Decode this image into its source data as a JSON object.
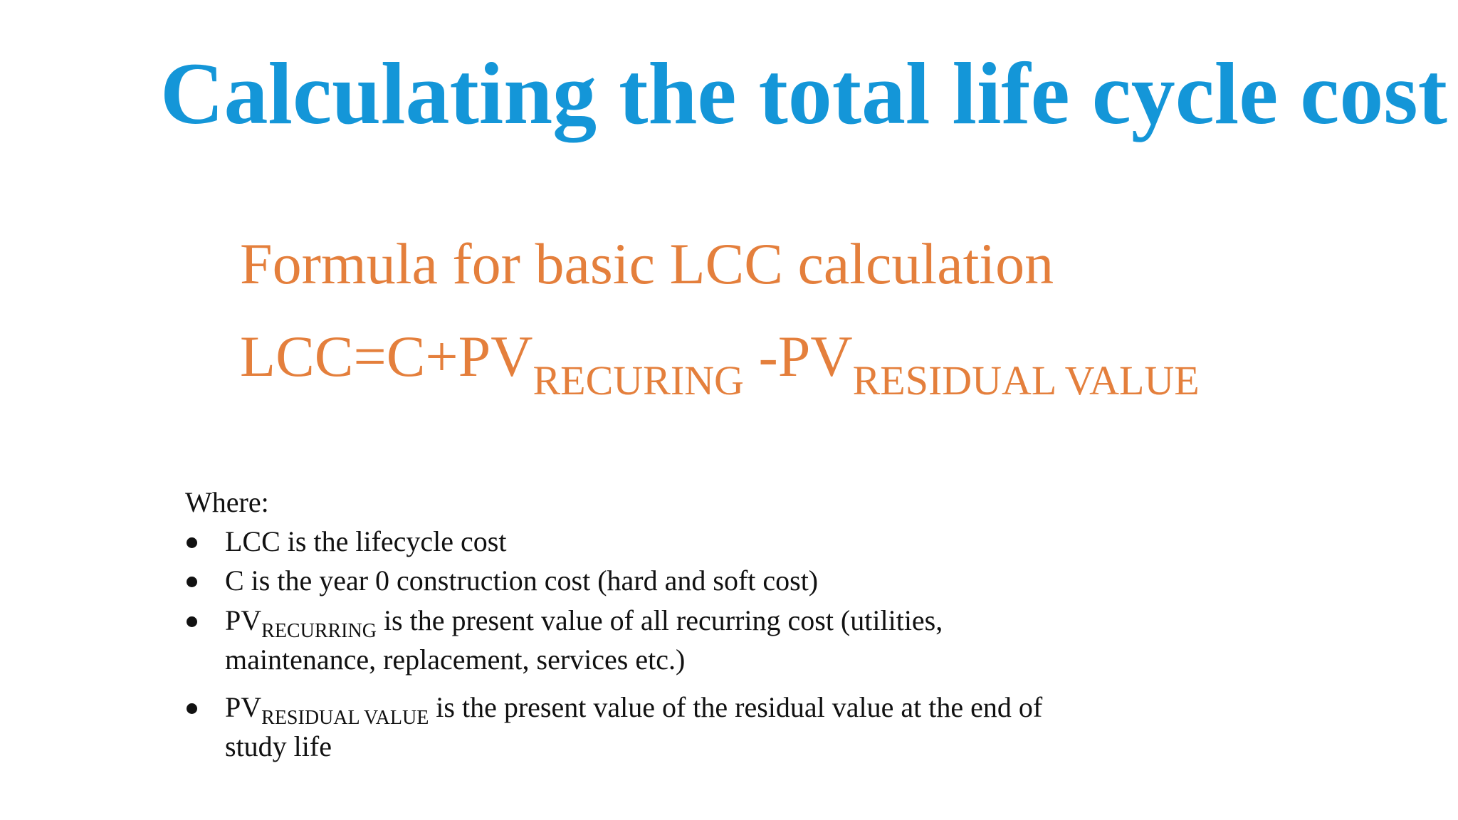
{
  "title": "Calculating the total life cycle cost",
  "formula": {
    "heading": "Formula for basic LCC calculation",
    "lhs": "LCC=C+PV",
    "sub1": "RECURING",
    "mid": " -PV",
    "sub2": "RESIDUAL VALUE"
  },
  "where": {
    "label": "Where:",
    "items": [
      {
        "text": "LCC is the lifecycle cost"
      },
      {
        "text": "C is the year 0 construction cost (hard and soft cost)"
      },
      {
        "prefix": "PV",
        "sub": "RECURRING",
        "text": " is the present value of all recurring cost (utilities, maintenance, replacement, services etc.)"
      },
      {
        "prefix": "PV",
        "sub": "RESIDUAL VALUE",
        "text": " is the present value of the residual value at the end of study life"
      }
    ]
  },
  "colors": {
    "title": "#1496d8",
    "formula": "#e47f3c",
    "body": "#111111"
  }
}
